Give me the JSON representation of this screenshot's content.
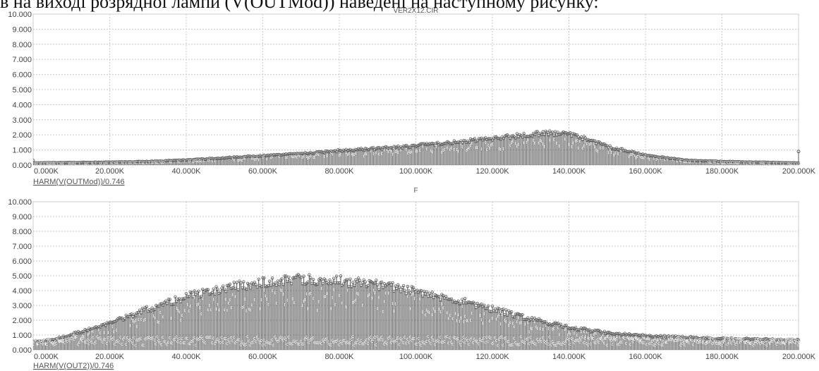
{
  "top_text": "в на виході розрядної лампи (V(OUTMod)) наведені на наступному рисунку:",
  "chart_data": [
    {
      "type": "scatter",
      "title": "VER2X12.CIR",
      "xlabel": "",
      "ylabel": "",
      "trace_label": "HARM(V(OUTMod))/0.746",
      "xlim": [
        0,
        200000
      ],
      "ylim": [
        0,
        10
      ],
      "x_ticks": [
        "0.000K",
        "20.000K",
        "40.000K",
        "60.000K",
        "80.000K",
        "100.000K",
        "120.000K",
        "140.000K",
        "160.000K",
        "180.000K",
        "200.000K"
      ],
      "y_ticks": [
        "0.000",
        "1.000",
        "2.000",
        "3.000",
        "4.000",
        "5.000",
        "6.000",
        "7.000",
        "8.000",
        "9.000",
        "10.000"
      ],
      "grid": true,
      "color": "#5a5a5a",
      "envelope": {
        "x": [
          0,
          10000,
          20000,
          30000,
          40000,
          50000,
          60000,
          70000,
          80000,
          90000,
          100000,
          110000,
          120000,
          130000,
          135000,
          140000,
          145000,
          150000,
          160000,
          170000,
          180000,
          190000,
          200000
        ],
        "y": [
          0.15,
          0.18,
          0.2,
          0.25,
          0.35,
          0.5,
          0.65,
          0.8,
          1.0,
          1.15,
          1.35,
          1.6,
          1.85,
          2.15,
          2.25,
          2.15,
          1.8,
          1.3,
          0.7,
          0.35,
          0.25,
          0.2,
          0.15
        ]
      },
      "end_points": [
        {
          "x": 0,
          "y": 0.3
        },
        {
          "x": 200000,
          "y": 0.9
        }
      ]
    },
    {
      "type": "scatter",
      "title": "",
      "xlabel": "F",
      "ylabel": "",
      "trace_label": "HARM(V(OUT2))/0.746",
      "xlim": [
        0,
        200000
      ],
      "ylim": [
        0,
        10
      ],
      "x_ticks": [
        "0.000K",
        "20.000K",
        "40.000K",
        "60.000K",
        "80.000K",
        "100.000K",
        "120.000K",
        "140.000K",
        "160.000K",
        "180.000K",
        "200.000K"
      ],
      "y_ticks": [
        "0.000",
        "1.000",
        "2.000",
        "3.000",
        "4.000",
        "5.000",
        "6.000",
        "7.000",
        "8.000",
        "9.000",
        "10.000"
      ],
      "grid": true,
      "color": "#5a5a5a",
      "envelope": {
        "x": [
          0,
          5000,
          10000,
          20000,
          30000,
          40000,
          50000,
          60000,
          70000,
          80000,
          90000,
          100000,
          110000,
          120000,
          130000,
          140000,
          150000,
          160000,
          170000,
          180000,
          190000,
          200000
        ],
        "y": [
          0.6,
          0.7,
          1.1,
          1.9,
          2.9,
          3.8,
          4.4,
          4.8,
          5.0,
          4.9,
          4.6,
          4.2,
          3.6,
          2.9,
          2.2,
          1.6,
          1.2,
          1.0,
          0.9,
          0.8,
          0.75,
          0.7
        ]
      },
      "base_band": [
        0.3,
        0.9
      ]
    }
  ]
}
